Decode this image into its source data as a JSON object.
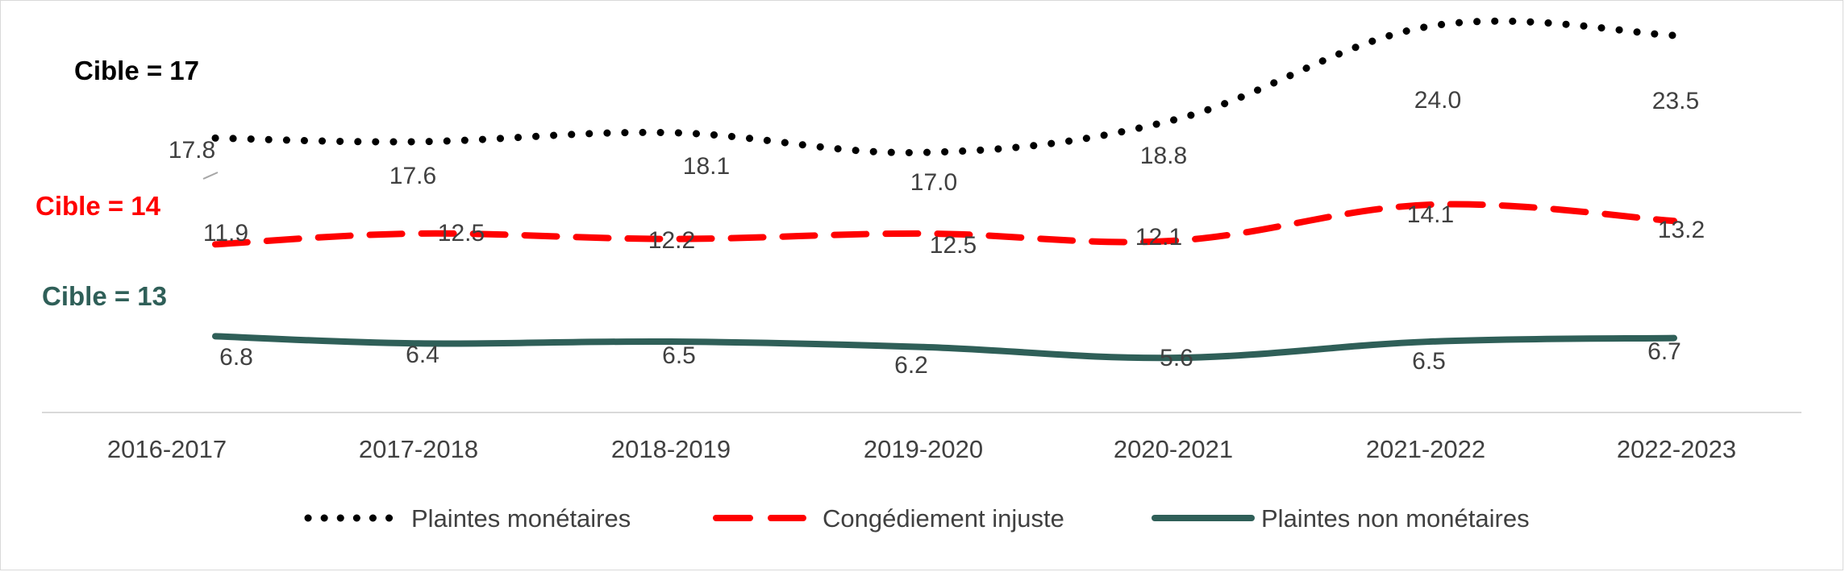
{
  "chart_data": {
    "type": "line",
    "categories": [
      "2016-2017",
      "2017-2018",
      "2018-2019",
      "2019-2020",
      "2020-2021",
      "2021-2022",
      "2022-2023"
    ],
    "series": [
      {
        "name": "Plaintes monétaires",
        "values": [
          17.8,
          17.6,
          18.1,
          17.0,
          18.8,
          24.0,
          23.5
        ],
        "color": "#000000",
        "style": "dotted",
        "target_label": "Cible = 17"
      },
      {
        "name": "Congédiement injuste",
        "values": [
          11.9,
          12.5,
          12.2,
          12.5,
          12.1,
          14.1,
          13.2
        ],
        "color": "#ff0000",
        "style": "dashed",
        "target_label": "Cible = 14"
      },
      {
        "name": "Plaintes non monétaires",
        "values": [
          6.8,
          6.4,
          6.5,
          6.2,
          5.6,
          6.5,
          6.7
        ],
        "color": "#2f5f58",
        "style": "solid",
        "target_label": "Cible = 13"
      }
    ],
    "title": "",
    "xlabel": "",
    "ylabel": "",
    "legend_position": "bottom",
    "grid": false,
    "y_axis_visible": false
  }
}
